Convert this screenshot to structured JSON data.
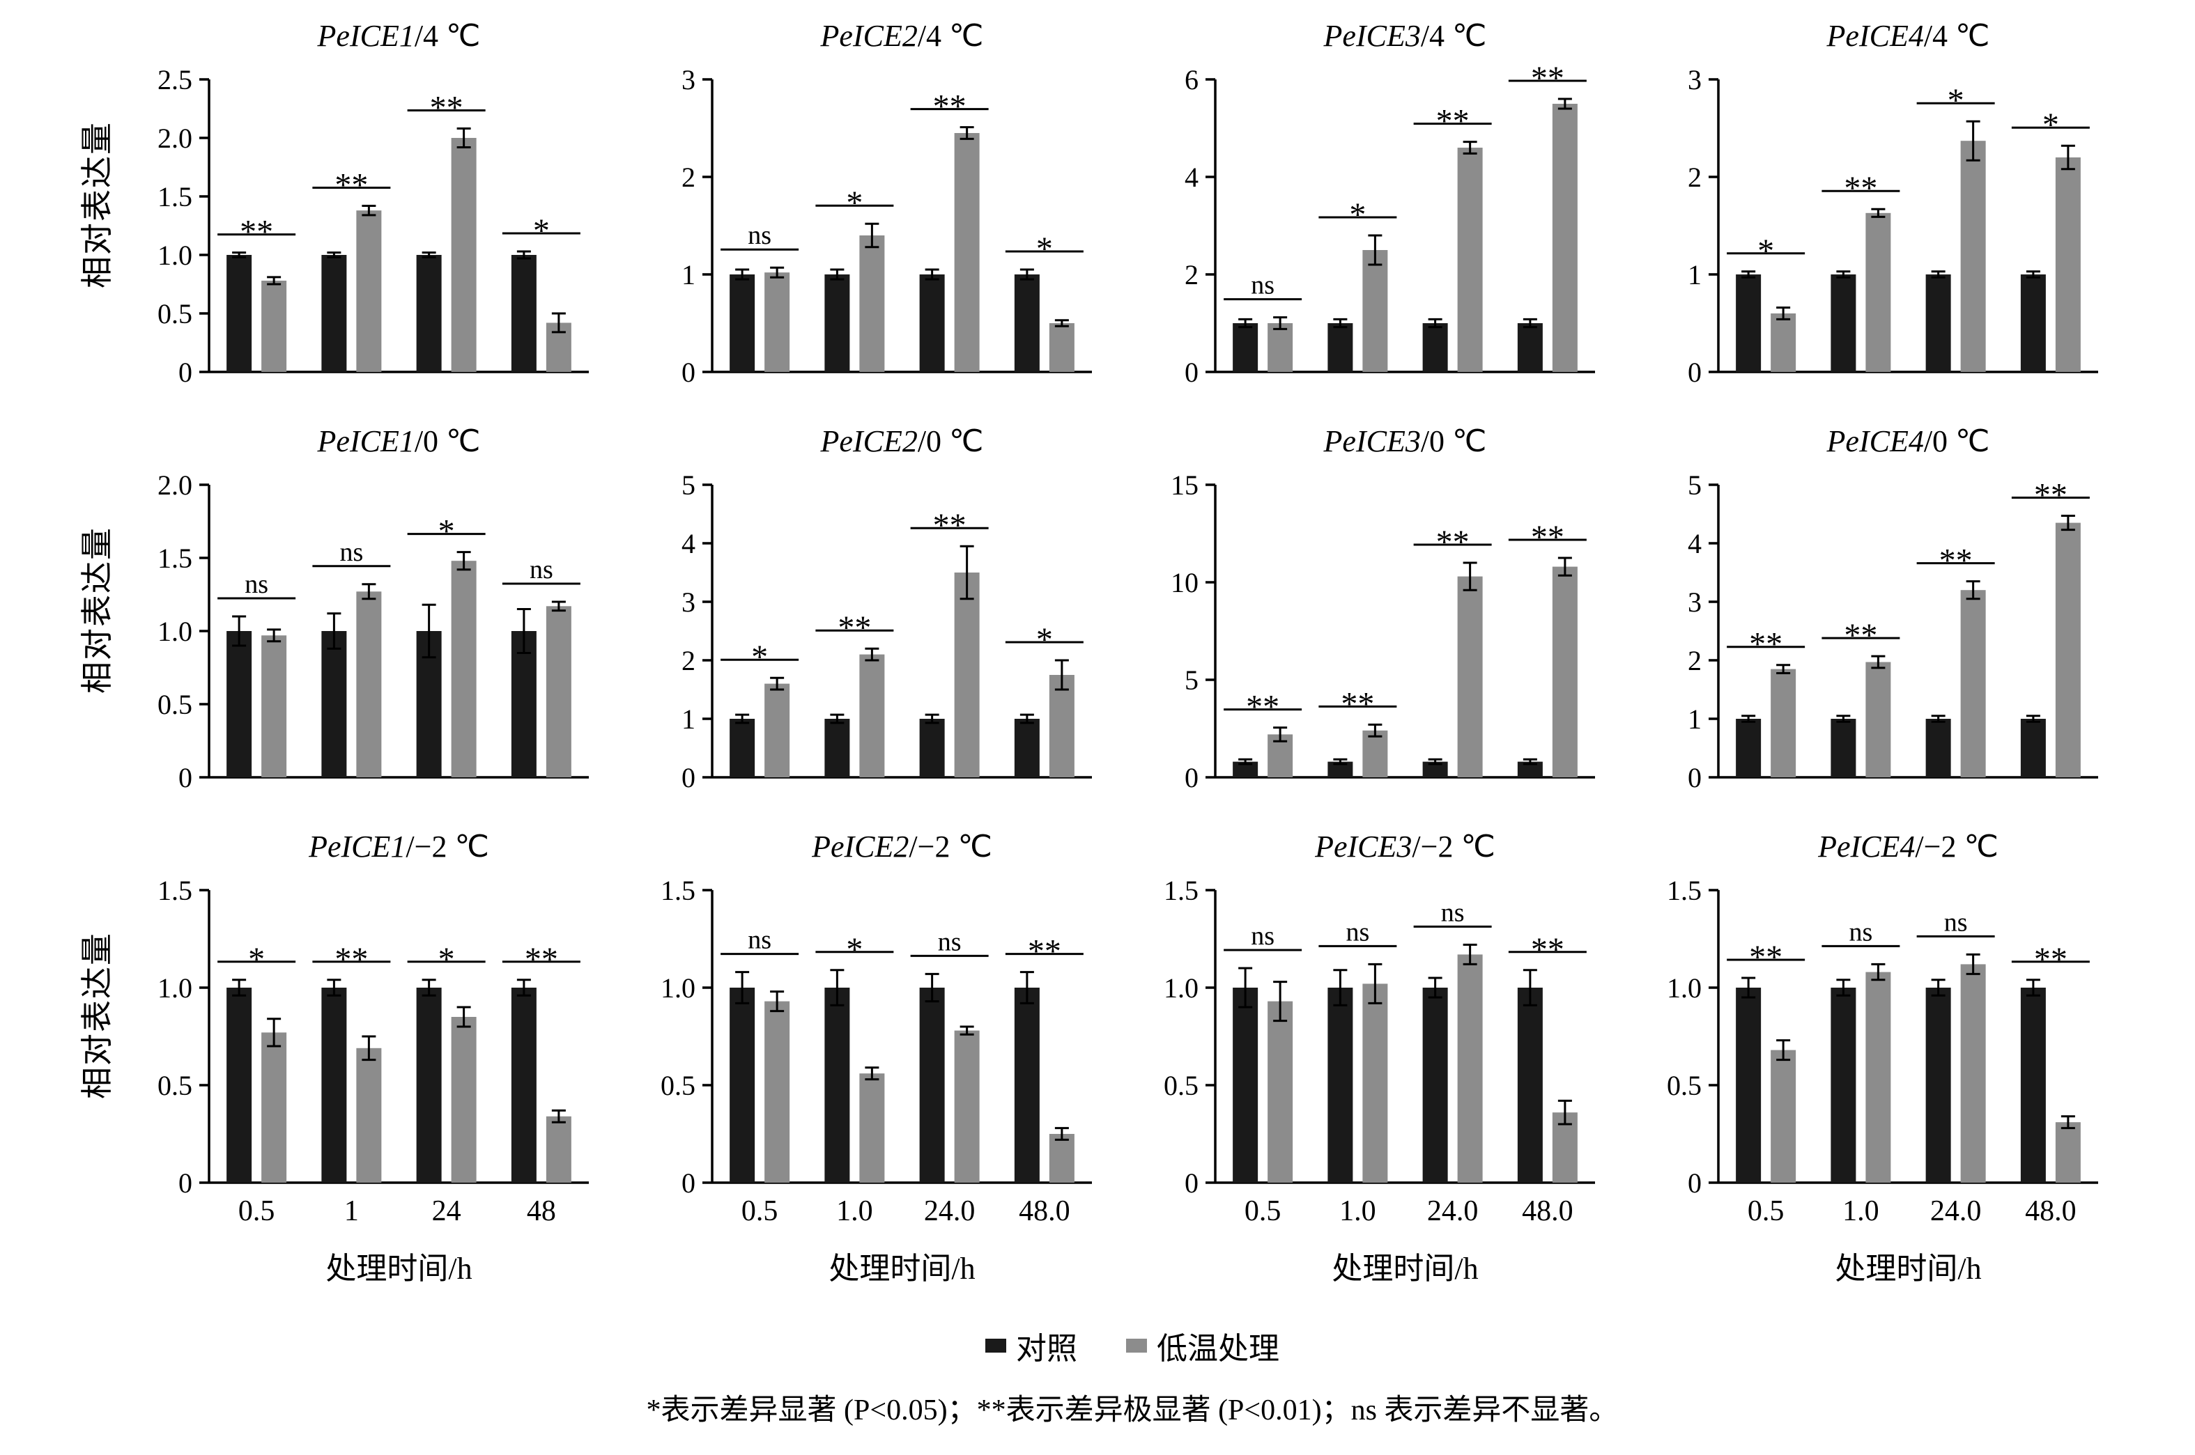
{
  "page": {
    "background": "#ffffff",
    "y_axis_label": "相对表达量",
    "x_axis_label": "处理时间/h"
  },
  "colors": {
    "control": "#1a1a1a",
    "treatment": "#8c8c8c",
    "axis": "#000000"
  },
  "legend": {
    "items": [
      {
        "label": "对照",
        "color": "#1a1a1a"
      },
      {
        "label": "低温处理",
        "color": "#8c8c8c"
      }
    ]
  },
  "footnote": "*表示差异显著 (P<0.05)；**表示差异极显著 (P<0.01)；ns 表示差异不显著。",
  "chart_data": [
    {
      "type": "bar",
      "gene": "PeICE1",
      "condition": "/4 ℃",
      "categories": [
        "0.5",
        "1",
        "24",
        "48"
      ],
      "show_x_labels": false,
      "ylim": [
        0,
        2.5
      ],
      "yticks": [
        0,
        0.5,
        1.0,
        1.5,
        2.0,
        2.5
      ],
      "ytick_labels": [
        "0",
        "0.5",
        "1.0",
        "1.5",
        "2.0",
        "2.5"
      ],
      "series": [
        {
          "name": "对照",
          "values": [
            1.0,
            1.0,
            1.0,
            1.0
          ],
          "errors": [
            0.02,
            0.02,
            0.02,
            0.03
          ]
        },
        {
          "name": "低温处理",
          "values": [
            0.78,
            1.38,
            2.0,
            0.42
          ],
          "errors": [
            0.03,
            0.04,
            0.08,
            0.08
          ]
        }
      ],
      "significance": [
        "**",
        "**",
        "**",
        "*"
      ]
    },
    {
      "type": "bar",
      "gene": "PeICE2",
      "condition": "/4 ℃",
      "categories": [
        "0.5",
        "1",
        "24",
        "48"
      ],
      "show_x_labels": false,
      "ylim": [
        0,
        3
      ],
      "yticks": [
        0,
        1,
        2,
        3
      ],
      "ytick_labels": [
        "0",
        "1",
        "2",
        "3"
      ],
      "series": [
        {
          "name": "对照",
          "values": [
            1.0,
            1.0,
            1.0,
            1.0
          ],
          "errors": [
            0.05,
            0.05,
            0.05,
            0.05
          ]
        },
        {
          "name": "低温处理",
          "values": [
            1.02,
            1.4,
            2.45,
            0.5
          ],
          "errors": [
            0.05,
            0.12,
            0.06,
            0.03
          ]
        }
      ],
      "significance": [
        "ns",
        "*",
        "**",
        "*"
      ]
    },
    {
      "type": "bar",
      "gene": "PeICE3",
      "condition": "/4 ℃",
      "categories": [
        "0.5",
        "1",
        "24",
        "48"
      ],
      "show_x_labels": false,
      "ylim": [
        0,
        6
      ],
      "yticks": [
        0,
        2,
        4,
        6
      ],
      "ytick_labels": [
        "0",
        "2",
        "4",
        "6"
      ],
      "series": [
        {
          "name": "对照",
          "values": [
            1.0,
            1.0,
            1.0,
            1.0
          ],
          "errors": [
            0.08,
            0.08,
            0.08,
            0.08
          ]
        },
        {
          "name": "低温处理",
          "values": [
            1.0,
            2.5,
            4.6,
            5.5
          ],
          "errors": [
            0.12,
            0.3,
            0.12,
            0.1
          ]
        }
      ],
      "significance": [
        "ns",
        "*",
        "**",
        "**"
      ]
    },
    {
      "type": "bar",
      "gene": "PeICE4",
      "condition": "/4 ℃",
      "categories": [
        "0.5",
        "1",
        "24",
        "48"
      ],
      "show_x_labels": false,
      "ylim": [
        0,
        3
      ],
      "yticks": [
        0,
        1,
        2,
        3
      ],
      "ytick_labels": [
        "0",
        "1",
        "2",
        "3"
      ],
      "series": [
        {
          "name": "对照",
          "values": [
            1.0,
            1.0,
            1.0,
            1.0
          ],
          "errors": [
            0.03,
            0.03,
            0.03,
            0.03
          ]
        },
        {
          "name": "低温处理",
          "values": [
            0.6,
            1.63,
            2.37,
            2.2
          ],
          "errors": [
            0.06,
            0.04,
            0.2,
            0.12
          ]
        }
      ],
      "significance": [
        "*",
        "**",
        "*",
        "*"
      ]
    },
    {
      "type": "bar",
      "gene": "PeICE1",
      "condition": "/0 ℃",
      "categories": [
        "0.5",
        "1",
        "24",
        "48"
      ],
      "show_x_labels": false,
      "ylim": [
        0,
        2.0
      ],
      "yticks": [
        0,
        0.5,
        1.0,
        1.5,
        2.0
      ],
      "ytick_labels": [
        "0",
        "0.5",
        "1.0",
        "1.5",
        "2.0"
      ],
      "series": [
        {
          "name": "对照",
          "values": [
            1.0,
            1.0,
            1.0,
            1.0
          ],
          "errors": [
            0.1,
            0.12,
            0.18,
            0.15
          ]
        },
        {
          "name": "低温处理",
          "values": [
            0.97,
            1.27,
            1.48,
            1.17
          ],
          "errors": [
            0.04,
            0.05,
            0.06,
            0.03
          ]
        }
      ],
      "significance": [
        "ns",
        "ns",
        "*",
        "ns"
      ]
    },
    {
      "type": "bar",
      "gene": "PeICE2",
      "condition": "/0 ℃",
      "categories": [
        "0.5",
        "1",
        "24",
        "48"
      ],
      "show_x_labels": false,
      "ylim": [
        0,
        5
      ],
      "yticks": [
        0,
        1,
        2,
        3,
        4,
        5
      ],
      "ytick_labels": [
        "0",
        "1",
        "2",
        "3",
        "4",
        "5"
      ],
      "series": [
        {
          "name": "对照",
          "values": [
            1.0,
            1.0,
            1.0,
            1.0
          ],
          "errors": [
            0.07,
            0.07,
            0.07,
            0.07
          ]
        },
        {
          "name": "低温处理",
          "values": [
            1.6,
            2.1,
            3.5,
            1.75
          ],
          "errors": [
            0.1,
            0.1,
            0.45,
            0.25
          ]
        }
      ],
      "significance": [
        "*",
        "**",
        "**",
        "*"
      ]
    },
    {
      "type": "bar",
      "gene": "PeICE3",
      "condition": "/0 ℃",
      "categories": [
        "0.5",
        "1",
        "24",
        "48"
      ],
      "show_x_labels": false,
      "ylim": [
        0,
        15
      ],
      "yticks": [
        0,
        5,
        10,
        15
      ],
      "ytick_labels": [
        "0",
        "5",
        "10",
        "15"
      ],
      "series": [
        {
          "name": "对照",
          "values": [
            0.8,
            0.8,
            0.8,
            0.8
          ],
          "errors": [
            0.12,
            0.12,
            0.12,
            0.12
          ]
        },
        {
          "name": "低温处理",
          "values": [
            2.2,
            2.4,
            10.3,
            10.8
          ],
          "errors": [
            0.35,
            0.3,
            0.7,
            0.45
          ]
        }
      ],
      "significance": [
        "**",
        "**",
        "**",
        "**"
      ]
    },
    {
      "type": "bar",
      "gene": "PeICE4",
      "condition": "/0 ℃",
      "categories": [
        "0.5",
        "1",
        "24",
        "48"
      ],
      "show_x_labels": false,
      "ylim": [
        0,
        5
      ],
      "yticks": [
        0,
        1,
        2,
        3,
        4,
        5
      ],
      "ytick_labels": [
        "0",
        "1",
        "2",
        "3",
        "4",
        "5"
      ],
      "series": [
        {
          "name": "对照",
          "values": [
            1.0,
            1.0,
            1.0,
            1.0
          ],
          "errors": [
            0.05,
            0.05,
            0.05,
            0.05
          ]
        },
        {
          "name": "低温处理",
          "values": [
            1.85,
            1.97,
            3.2,
            4.35
          ],
          "errors": [
            0.07,
            0.1,
            0.15,
            0.12
          ]
        }
      ],
      "significance": [
        "**",
        "**",
        "**",
        "**"
      ]
    },
    {
      "type": "bar",
      "gene": "PeICE1",
      "condition": "/−2 ℃",
      "categories": [
        "0.5",
        "1",
        "24",
        "48"
      ],
      "show_x_labels": true,
      "ylim": [
        0,
        1.5
      ],
      "yticks": [
        0,
        0.5,
        1.0,
        1.5
      ],
      "ytick_labels": [
        "0",
        "0.5",
        "1.0",
        "1.5"
      ],
      "series": [
        {
          "name": "对照",
          "values": [
            1.0,
            1.0,
            1.0,
            1.0
          ],
          "errors": [
            0.04,
            0.04,
            0.04,
            0.04
          ]
        },
        {
          "name": "低温处理",
          "values": [
            0.77,
            0.69,
            0.85,
            0.34
          ],
          "errors": [
            0.07,
            0.06,
            0.05,
            0.03
          ]
        }
      ],
      "significance": [
        "*",
        "**",
        "*",
        "**"
      ]
    },
    {
      "type": "bar",
      "gene": "PeICE2",
      "condition": "/−2 ℃",
      "categories": [
        "0.5",
        "1.0",
        "24.0",
        "48.0"
      ],
      "show_x_labels": true,
      "ylim": [
        0,
        1.5
      ],
      "yticks": [
        0,
        0.5,
        1.0,
        1.5
      ],
      "ytick_labels": [
        "0",
        "0.5",
        "1.0",
        "1.5"
      ],
      "series": [
        {
          "name": "对照",
          "values": [
            1.0,
            1.0,
            1.0,
            1.0
          ],
          "errors": [
            0.08,
            0.09,
            0.07,
            0.08
          ]
        },
        {
          "name": "低温处理",
          "values": [
            0.93,
            0.56,
            0.78,
            0.25
          ],
          "errors": [
            0.05,
            0.03,
            0.02,
            0.03
          ]
        }
      ],
      "significance": [
        "ns",
        "*",
        "ns",
        "**"
      ]
    },
    {
      "type": "bar",
      "gene": "PeICE3",
      "condition": "/−2 ℃",
      "categories": [
        "0.5",
        "1.0",
        "24.0",
        "48.0"
      ],
      "show_x_labels": true,
      "ylim": [
        0,
        1.5
      ],
      "yticks": [
        0,
        0.5,
        1.0,
        1.5
      ],
      "ytick_labels": [
        "0",
        "0.5",
        "1.0",
        "1.5"
      ],
      "series": [
        {
          "name": "对照",
          "values": [
            1.0,
            1.0,
            1.0,
            1.0
          ],
          "errors": [
            0.1,
            0.09,
            0.05,
            0.09
          ]
        },
        {
          "name": "低温处理",
          "values": [
            0.93,
            1.02,
            1.17,
            0.36
          ],
          "errors": [
            0.1,
            0.1,
            0.05,
            0.06
          ]
        }
      ],
      "significance": [
        "ns",
        "ns",
        "ns",
        "**"
      ]
    },
    {
      "type": "bar",
      "gene": "PeICE4",
      "condition": "/−2 ℃",
      "categories": [
        "0.5",
        "1.0",
        "24.0",
        "48.0"
      ],
      "show_x_labels": true,
      "ylim": [
        0,
        1.5
      ],
      "yticks": [
        0,
        0.5,
        1.0,
        1.5
      ],
      "ytick_labels": [
        "0",
        "0.5",
        "1.0",
        "1.5"
      ],
      "series": [
        {
          "name": "对照",
          "values": [
            1.0,
            1.0,
            1.0,
            1.0
          ],
          "errors": [
            0.05,
            0.04,
            0.04,
            0.04
          ]
        },
        {
          "name": "低温处理",
          "values": [
            0.68,
            1.08,
            1.12,
            0.31
          ],
          "errors": [
            0.05,
            0.04,
            0.05,
            0.03
          ]
        }
      ],
      "significance": [
        "**",
        "ns",
        "ns",
        "**"
      ]
    }
  ]
}
